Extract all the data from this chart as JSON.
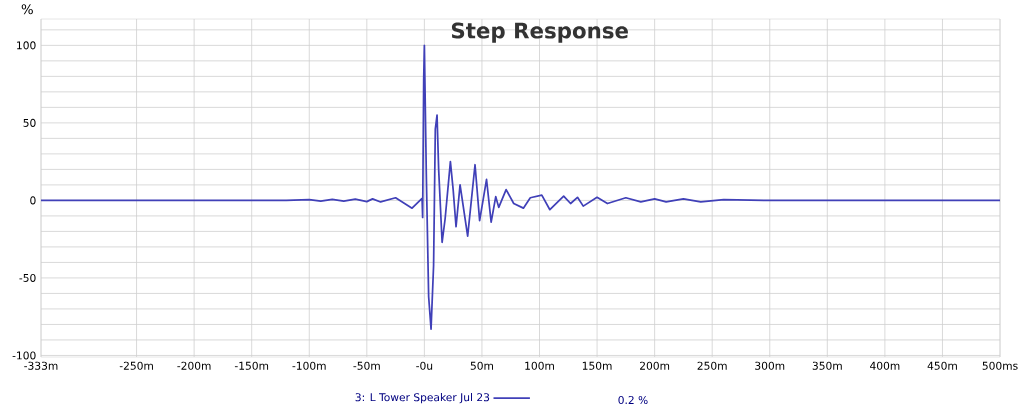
{
  "chart_data": {
    "type": "line",
    "title": "Step Response",
    "ylabel": "%",
    "x": [
      -333,
      -120,
      -100,
      -90,
      -80,
      -70,
      -60,
      -50,
      -45,
      -38,
      -25,
      -10.7,
      -2,
      -1.5,
      -0.6,
      0,
      1.7,
      3.7,
      5.8,
      8,
      9.5,
      11,
      12.4,
      15.4,
      18,
      22.6,
      25,
      27.5,
      31,
      37.6,
      44,
      48,
      54,
      58,
      62,
      64.6,
      71,
      77.6,
      86,
      92,
      102,
      109,
      121,
      127,
      133,
      138,
      150,
      159,
      175,
      188,
      200,
      210,
      225,
      240,
      260,
      300,
      500
    ],
    "series": [
      {
        "name": "3: L Tower Speaker Jul 23",
        "color": "#4040b8",
        "values": [
          0,
          0,
          0.5,
          -0.5,
          0.7,
          -0.5,
          0.8,
          -0.8,
          1,
          -1,
          1.7,
          -5,
          1.3,
          -11,
          78,
          100,
          16,
          -62,
          -83,
          -42,
          46,
          55,
          20,
          -27,
          -12,
          25,
          7,
          -17,
          10,
          -23,
          23,
          -13,
          13.5,
          -14,
          2.4,
          -4.5,
          7,
          -2,
          -5,
          1.7,
          3.4,
          -6,
          2.8,
          -2,
          2,
          -3.7,
          2,
          -2,
          1.7,
          -1,
          1,
          -1,
          1,
          -1,
          0.5,
          0,
          0
        ]
      }
    ],
    "xlim": [
      -333,
      500
    ],
    "ylim": [
      -101,
      117
    ],
    "xticks": [
      {
        "value": -333,
        "label": "-333m"
      },
      {
        "value": -250,
        "label": "-250m"
      },
      {
        "value": -200,
        "label": "-200m"
      },
      {
        "value": -150,
        "label": "-150m"
      },
      {
        "value": -100,
        "label": "-100m"
      },
      {
        "value": -50,
        "label": "-50m"
      },
      {
        "value": 0,
        "label": "-0u"
      },
      {
        "value": 50,
        "label": "50m"
      },
      {
        "value": 100,
        "label": "100m"
      },
      {
        "value": 150,
        "label": "150m"
      },
      {
        "value": 200,
        "label": "200m"
      },
      {
        "value": 250,
        "label": "250m"
      },
      {
        "value": 300,
        "label": "300m"
      },
      {
        "value": 350,
        "label": "350m"
      },
      {
        "value": 400,
        "label": "400m"
      },
      {
        "value": 450,
        "label": "450m"
      },
      {
        "value": 500,
        "label": "500ms"
      }
    ],
    "yticks": [
      -100,
      {
        "value": -90,
        "label": null
      },
      {
        "value": -80,
        "label": null
      },
      {
        "value": -70,
        "label": null
      },
      {
        "value": -60,
        "label": null
      },
      -50,
      {
        "value": -40,
        "label": null
      },
      {
        "value": -30,
        "label": null
      },
      {
        "value": -20,
        "label": null
      },
      {
        "value": -10,
        "label": null
      },
      0,
      {
        "value": 10,
        "label": null
      },
      {
        "value": 20,
        "label": null
      },
      {
        "value": 30,
        "label": null
      },
      {
        "value": 40,
        "label": null
      },
      50,
      {
        "value": 60,
        "label": null
      },
      {
        "value": 70,
        "label": null
      },
      {
        "value": 80,
        "label": null
      },
      {
        "value": 90,
        "label": null
      },
      100,
      {
        "value": 110,
        "label": null
      }
    ],
    "grid": true,
    "legend": "bottom",
    "annotations": [
      "0.2 %"
    ]
  }
}
